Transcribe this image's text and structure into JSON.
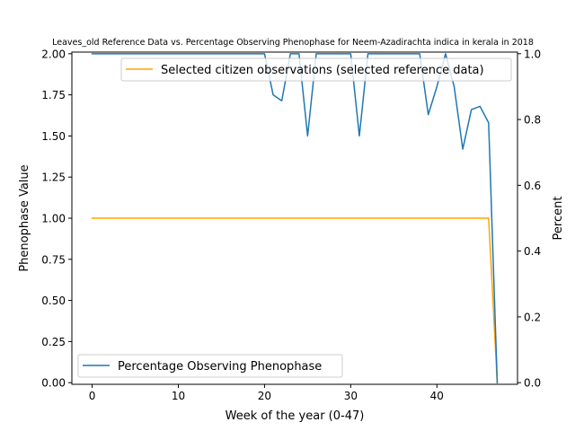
{
  "chart_data": {
    "type": "line",
    "title": "Leaves_old Reference Data vs. Percentage Observing Phenophase for Neem-Azadirachta indica in kerala in 2018",
    "xlabel": "Week of the year (0-47)",
    "ylabel_left": "Phenophase Value",
    "ylabel_right": "Percent",
    "xlim": [
      -2.35,
      49.35
    ],
    "ylim_left": [
      -0.01,
      2.01
    ],
    "ylim_right": [
      -0.005,
      1.005
    ],
    "x_ticks": [
      0,
      10,
      20,
      30,
      40
    ],
    "y_ticks_left": [
      "0.00",
      "0.25",
      "0.50",
      "0.75",
      "1.00",
      "1.25",
      "1.50",
      "1.75",
      "2.00"
    ],
    "y_ticks_right": [
      "0.0",
      "0.2",
      "0.4",
      "0.6",
      "0.8",
      "1.0"
    ],
    "grid": false,
    "series": [
      {
        "name": "Selected citizen observations (selected reference data)",
        "axis": "left",
        "color": "#ffa500",
        "legend_position": "upper right",
        "x": [
          0,
          46,
          47
        ],
        "y": [
          1.0,
          1.0,
          0.0
        ]
      },
      {
        "name": "Percentage Observing Phenophase",
        "axis": "right",
        "color": "#1f77b4",
        "legend_position": "lower left",
        "x": [
          0,
          1,
          2,
          3,
          4,
          5,
          6,
          7,
          8,
          9,
          10,
          11,
          12,
          13,
          14,
          15,
          16,
          17,
          18,
          19,
          20,
          21,
          22,
          23,
          24,
          25,
          26,
          27,
          28,
          29,
          30,
          31,
          32,
          33,
          34,
          35,
          36,
          37,
          38,
          39,
          40,
          41,
          42,
          43,
          44,
          45,
          46,
          47
        ],
        "y": [
          1,
          1,
          1,
          1,
          1,
          1,
          1,
          1,
          1,
          1,
          1,
          1,
          1,
          1,
          1,
          1,
          1,
          1,
          1,
          1,
          1,
          0.875,
          0.857,
          1,
          1,
          0.75,
          1,
          1,
          1,
          1,
          1,
          0.75,
          1,
          1,
          1,
          1,
          1,
          1,
          1,
          0.815,
          0.9,
          1,
          0.9,
          0.71,
          0.83,
          0.84,
          0.79,
          0
        ]
      }
    ]
  }
}
